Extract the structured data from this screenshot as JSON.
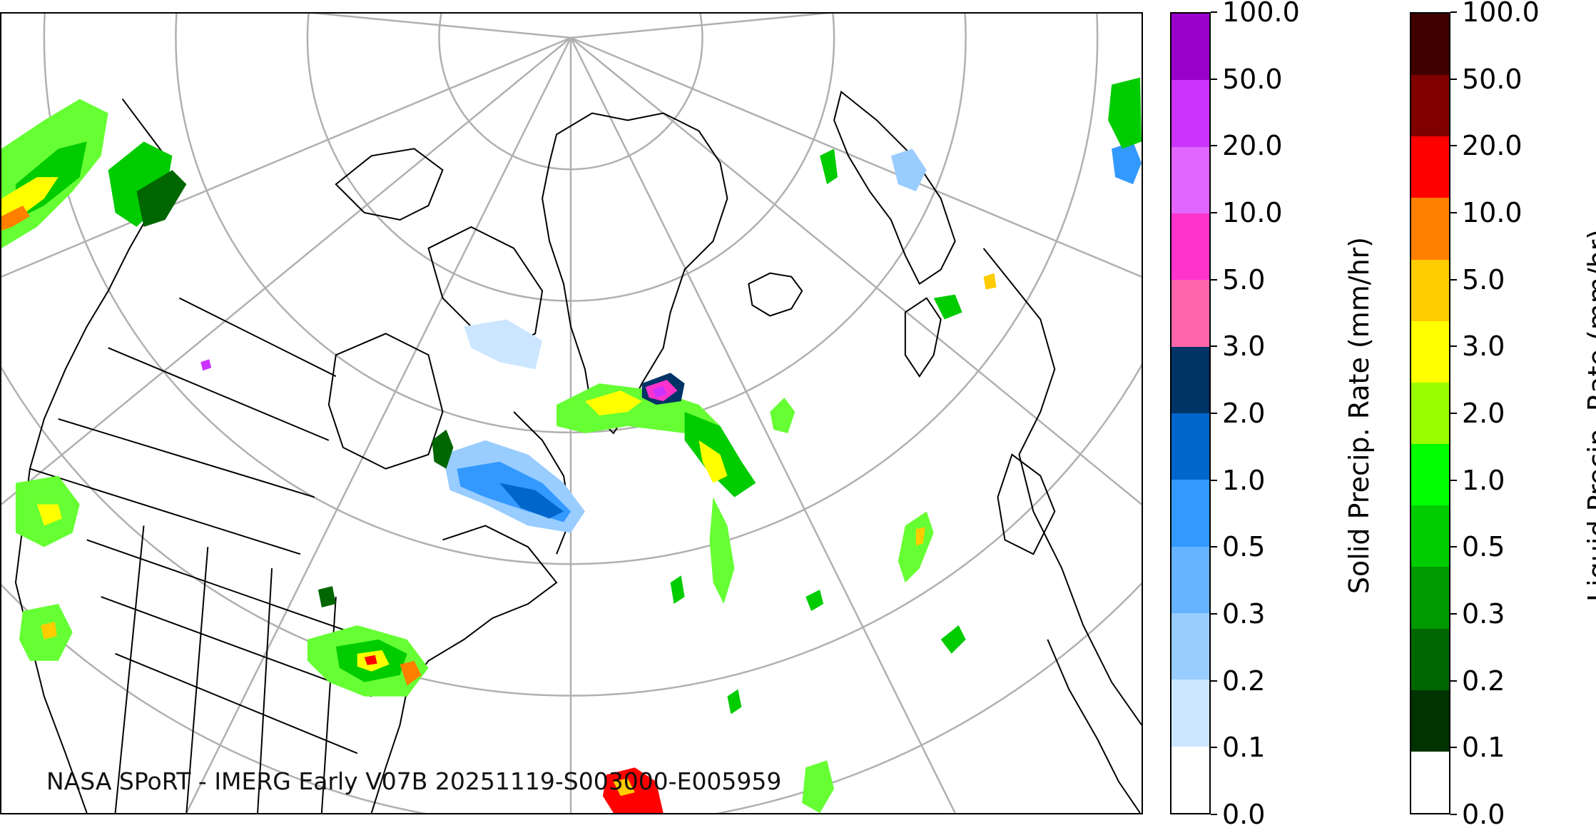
{
  "credit": "NASA SPoRT - IMERG Early V07B 20251119-S003000-E005959",
  "colorbars": {
    "solid": {
      "title": "Solid Precip. Rate (mm/hr)",
      "ticks": [
        "0.0",
        "0.1",
        "0.2",
        "0.3",
        "0.5",
        "1.0",
        "2.0",
        "3.0",
        "5.0",
        "10.0",
        "20.0",
        "50.0",
        "100.0"
      ],
      "colors": [
        "#ffffff",
        "#cce6ff",
        "#99ccff",
        "#66b3ff",
        "#3399ff",
        "#0066cc",
        "#003366",
        "#ff66aa",
        "#ff33cc",
        "#e066ff",
        "#cc33ff",
        "#9900cc"
      ]
    },
    "liquid": {
      "title": "Liquid Precip. Rate (mm/hr)",
      "ticks": [
        "0.0",
        "0.1",
        "0.2",
        "0.3",
        "0.5",
        "1.0",
        "2.0",
        "3.0",
        "5.0",
        "10.0",
        "20.0",
        "50.0",
        "100.0"
      ],
      "colors": [
        "#ffffff",
        "#003300",
        "#006600",
        "#009900",
        "#00cc00",
        "#00ff00",
        "#99ff00",
        "#ffff00",
        "#ffcc00",
        "#ff8000",
        "#ff0000",
        "#800000",
        "#400000"
      ]
    }
  },
  "map": {
    "graticule_color": "#b0b0b0",
    "coastline_color": "#000000",
    "precip_colors": {
      "light_green": "#66ff33",
      "green": "#00cc00",
      "dark_green": "#006600",
      "yellow": "#ffff00",
      "orange": "#ff8000",
      "red": "#ff0000",
      "light_blue": "#99ccff",
      "blue": "#3399ff",
      "dark_blue": "#0066cc",
      "pink": "#ff33cc",
      "magenta": "#cc33ff"
    }
  }
}
